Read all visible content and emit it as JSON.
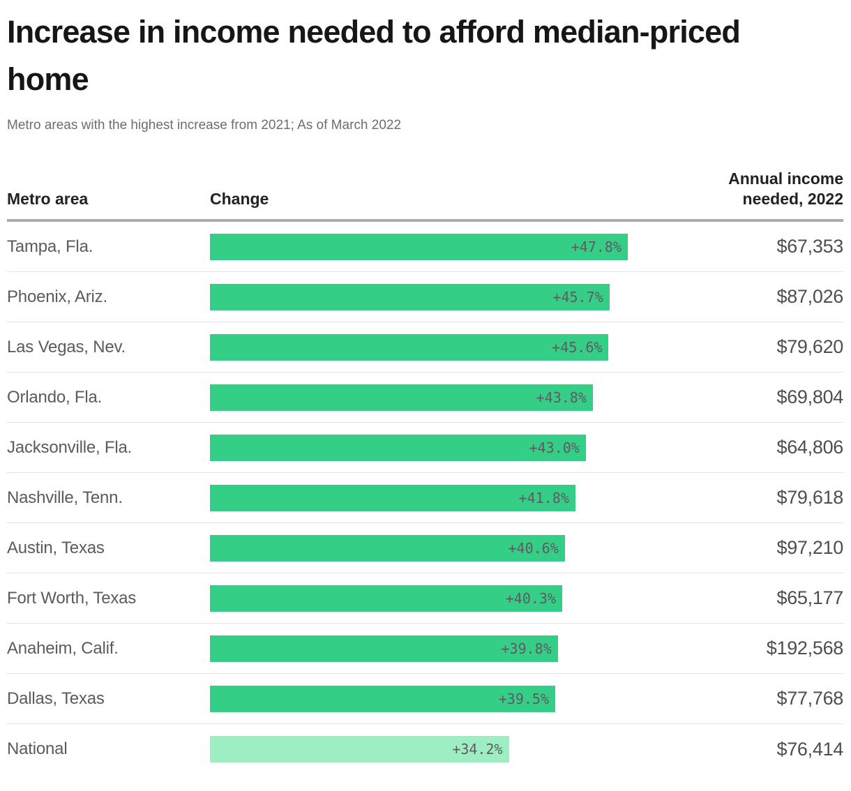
{
  "header": {
    "title": "Increase in income needed to afford median-priced home",
    "subtitle": "Metro areas with the highest increase from 2021; As of March 2022"
  },
  "columns": {
    "metro": "Metro area",
    "change": "Change",
    "income": "Annual income needed, 2022"
  },
  "colors": {
    "bar": "#34ce86",
    "bar_muted": "#9deec3",
    "rule": "#ababab",
    "separator": "#e4e4e4"
  },
  "rows": [
    {
      "metro": "Tampa, Fla.",
      "change_value": 47.8,
      "change_label": "+47.8%",
      "income": "$67,353",
      "muted": false
    },
    {
      "metro": "Phoenix, Ariz.",
      "change_value": 45.7,
      "change_label": "+45.7%",
      "income": "$87,026",
      "muted": false
    },
    {
      "metro": "Las Vegas, Nev.",
      "change_value": 45.6,
      "change_label": "+45.6%",
      "income": "$79,620",
      "muted": false
    },
    {
      "metro": "Orlando, Fla.",
      "change_value": 43.8,
      "change_label": "+43.8%",
      "income": "$69,804",
      "muted": false
    },
    {
      "metro": "Jacksonville, Fla.",
      "change_value": 43.0,
      "change_label": "+43.0%",
      "income": "$64,806",
      "muted": false
    },
    {
      "metro": "Nashville, Tenn.",
      "change_value": 41.8,
      "change_label": "+41.8%",
      "income": "$79,618",
      "muted": false
    },
    {
      "metro": "Austin, Texas",
      "change_value": 40.6,
      "change_label": "+40.6%",
      "income": "$97,210",
      "muted": false
    },
    {
      "metro": "Fort Worth, Texas",
      "change_value": 40.3,
      "change_label": "+40.3%",
      "income": "$65,177",
      "muted": false
    },
    {
      "metro": "Anaheim, Calif.",
      "change_value": 39.8,
      "change_label": "+39.8%",
      "income": "$192,568",
      "muted": false
    },
    {
      "metro": "Dallas, Texas",
      "change_value": 39.5,
      "change_label": "+39.5%",
      "income": "$77,768",
      "muted": false
    },
    {
      "metro": "National",
      "change_value": 34.2,
      "change_label": "+34.2%",
      "income": "$76,414",
      "muted": true
    }
  ],
  "chart_data": {
    "type": "bar",
    "orientation": "horizontal",
    "title": "Increase in income needed to afford median-priced home",
    "subtitle": "Metro areas with the highest increase from 2021; As of March 2022",
    "categories": [
      "Tampa, Fla.",
      "Phoenix, Ariz.",
      "Las Vegas, Nev.",
      "Orlando, Fla.",
      "Jacksonville, Fla.",
      "Nashville, Tenn.",
      "Austin, Texas",
      "Fort Worth, Texas",
      "Anaheim, Calif.",
      "Dallas, Texas",
      "National"
    ],
    "series": [
      {
        "name": "Change",
        "unit": "%",
        "values": [
          47.8,
          45.7,
          45.6,
          43.8,
          43.0,
          41.8,
          40.6,
          40.3,
          39.8,
          39.5,
          34.2
        ]
      },
      {
        "name": "Annual income needed, 2022",
        "unit": "USD",
        "values": [
          67353,
          87026,
          79620,
          69804,
          64806,
          79618,
          97210,
          65177,
          192568,
          77768,
          76414
        ]
      }
    ],
    "bar_labels": [
      "+47.8%",
      "+45.7%",
      "+45.6%",
      "+43.8%",
      "+43.0%",
      "+41.8%",
      "+40.6%",
      "+40.3%",
      "+39.8%",
      "+39.5%",
      "+34.2%"
    ],
    "value_labels": [
      "$67,353",
      "$87,026",
      "$79,620",
      "$69,804",
      "$64,806",
      "$79,618",
      "$97,210",
      "$65,177",
      "$192,568",
      "$77,768",
      "$76,414"
    ],
    "xlim": [
      0,
      47.8
    ],
    "grid": false,
    "legend": false,
    "highlight_muted_category": "National"
  }
}
